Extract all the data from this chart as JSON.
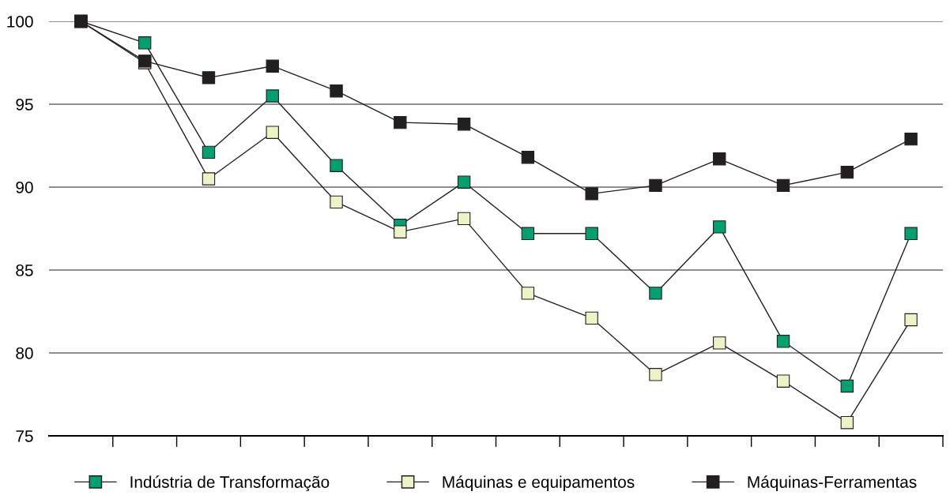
{
  "chart_data": {
    "type": "line",
    "categories": [
      null,
      null,
      null,
      null,
      null,
      null,
      null,
      null,
      null,
      null,
      null,
      null,
      null,
      null
    ],
    "series": [
      {
        "name": "Indústria de Transformação",
        "color": "#00a070",
        "values": [
          100,
          98.7,
          92.1,
          95.5,
          91.3,
          87.7,
          90.3,
          87.2,
          87.2,
          83.6,
          87.6,
          80.7,
          78.0,
          87.2
        ]
      },
      {
        "name": "Máquinas e equipamentos",
        "color": "#eef2c4",
        "values": [
          100,
          97.5,
          90.5,
          93.3,
          89.1,
          87.3,
          88.1,
          83.6,
          82.1,
          78.7,
          80.6,
          78.3,
          75.8,
          82.0
        ]
      },
      {
        "name": "Máquinas-Ferramentas",
        "color": "#231f20",
        "values": [
          100,
          97.6,
          96.6,
          97.3,
          95.8,
          93.9,
          93.8,
          91.8,
          89.6,
          90.1,
          91.7,
          90.1,
          90.9,
          92.9
        ]
      }
    ],
    "ylim": [
      75,
      100
    ],
    "yticks": [
      75,
      80,
      85,
      90,
      95,
      100
    ],
    "grid": "y",
    "legend": "bottom",
    "marker": "square",
    "line_style": "solid",
    "tick_labels": "y"
  }
}
